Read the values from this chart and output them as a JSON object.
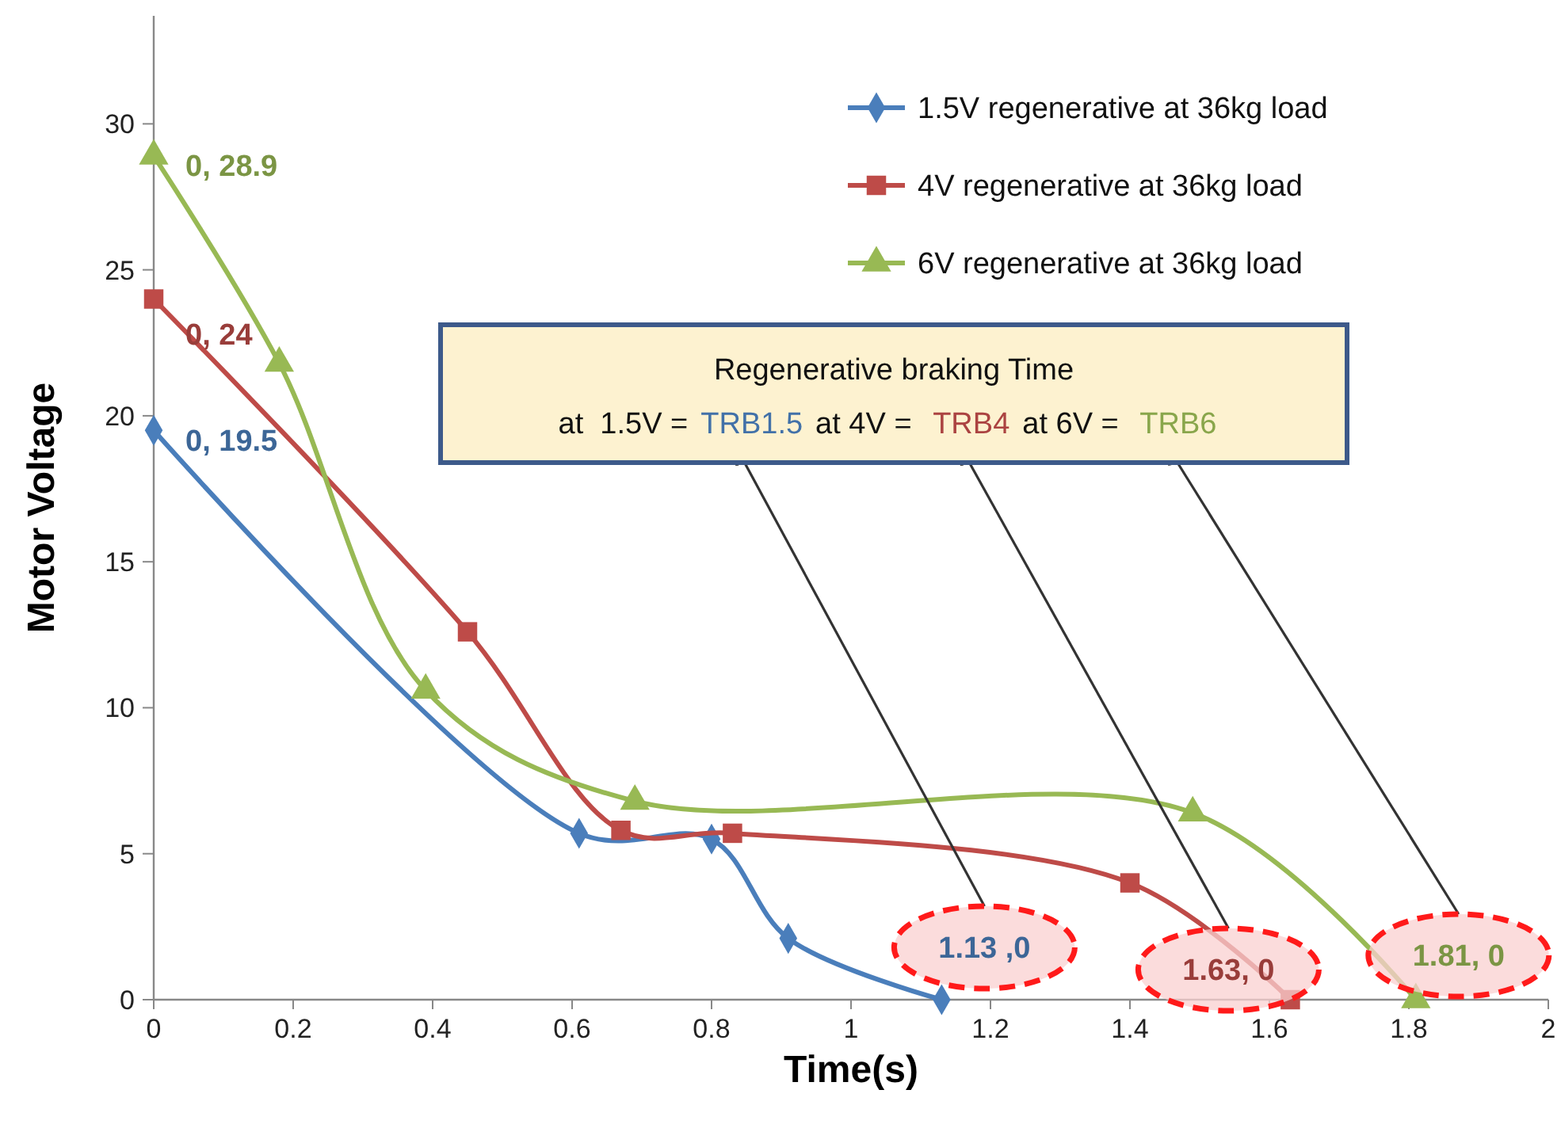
{
  "chart_data": {
    "type": "line",
    "xlabel": "Time(s)",
    "ylabel": "Motor Voltage",
    "xlim": [
      0,
      2
    ],
    "xticks": [
      0,
      0.2,
      0.4,
      0.6,
      0.8,
      1,
      1.2,
      1.4,
      1.6,
      1.8,
      2
    ],
    "ylim": [
      0,
      33.7
    ],
    "yticks": [
      0,
      5,
      10,
      15,
      20,
      25,
      30
    ],
    "grid": false,
    "legend": "top right",
    "series": [
      {
        "name": "1.5V regenerative at 36kg load",
        "color": "#4a7ebb",
        "marker": "diamond",
        "x": [
          0,
          0.61,
          0.8,
          0.91,
          1.13
        ],
        "values": [
          19.5,
          5.7,
          5.5,
          2.1,
          0
        ]
      },
      {
        "name": "4V regenerative at 36kg load",
        "color": "#be4b48",
        "marker": "square",
        "x": [
          0,
          0.45,
          0.67,
          0.83,
          1.4,
          1.63
        ],
        "values": [
          24,
          12.6,
          5.8,
          5.7,
          4.0,
          0
        ]
      },
      {
        "name": "6V regenerative at 36kg load",
        "color": "#98b954",
        "marker": "triangle",
        "x": [
          0,
          0.18,
          0.39,
          0.69,
          1.49,
          1.81
        ],
        "values": [
          28.9,
          21.8,
          10.6,
          6.8,
          6.4,
          0
        ]
      }
    ],
    "annotations": [
      {
        "text": "0, 19.5",
        "x": 0,
        "y": 19.5
      },
      {
        "text": "0, 24",
        "x": 0,
        "y": 24
      },
      {
        "text": "0, 28.9",
        "x": 0,
        "y": 28.9
      },
      {
        "text": "1.13 ,0",
        "x": 1.13,
        "y": 0
      },
      {
        "text": "1.63, 0",
        "x": 1.63,
        "y": 0
      },
      {
        "text": "1.81, 0",
        "x": 1.81,
        "y": 0
      },
      "Regenerative braking Time",
      "at  1.5V =",
      "TRB1.5",
      "at 4V = ",
      "TRB4",
      "at 6V = ",
      "TRB6"
    ]
  }
}
